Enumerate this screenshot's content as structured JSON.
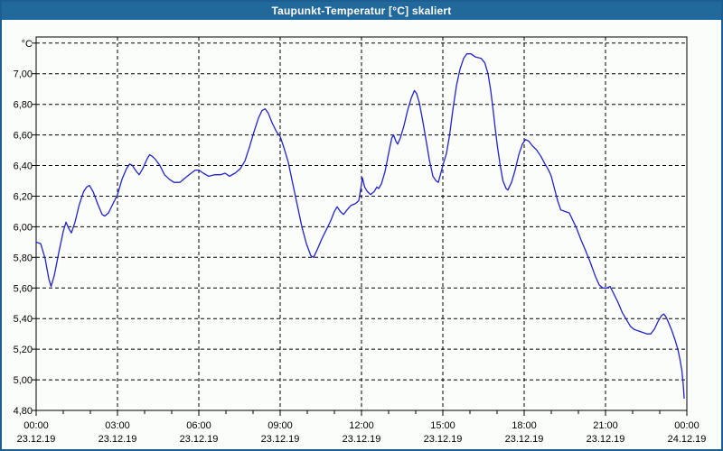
{
  "window": {
    "title": "Taupunkt-Temperatur [°C] skaliert",
    "title_bar_color": "#21689B",
    "border_color": "#1D5E92",
    "background_color": "#FBFDFA"
  },
  "chart_data": {
    "type": "line",
    "title": "Taupunkt-Temperatur [°C] skaliert",
    "unit_label": "°C",
    "line_color": "#2222CC",
    "grid_color": "#000000",
    "ylim": [
      4.8,
      7.24
    ],
    "xlim_minutes": [
      0,
      1440
    ],
    "x_minor_step_minutes": 60,
    "grid": "dashed",
    "legend_position": "none",
    "y_ticks": [
      {
        "value": 7.0,
        "label": "7,00"
      },
      {
        "value": 6.8,
        "label": "6,80"
      },
      {
        "value": 6.6,
        "label": "6,60"
      },
      {
        "value": 6.4,
        "label": "6,40"
      },
      {
        "value": 6.2,
        "label": "6,20"
      },
      {
        "value": 6.0,
        "label": "6,00"
      },
      {
        "value": 5.8,
        "label": "5,80"
      },
      {
        "value": 5.6,
        "label": "5,60"
      },
      {
        "value": 5.4,
        "label": "5,40"
      },
      {
        "value": 5.2,
        "label": "5,20"
      },
      {
        "value": 5.0,
        "label": "5,00"
      },
      {
        "value": 4.8,
        "label": "4,80"
      }
    ],
    "y_grid_values": [
      5.0,
      5.2,
      5.4,
      5.6,
      5.8,
      6.0,
      6.2,
      6.4,
      6.6,
      6.8,
      7.0,
      7.2
    ],
    "x_major_ticks": [
      {
        "minutes": 0,
        "time": "00:00",
        "date": "23.12.19"
      },
      {
        "minutes": 180,
        "time": "03:00",
        "date": "23.12.19"
      },
      {
        "minutes": 360,
        "time": "06:00",
        "date": "23.12.19"
      },
      {
        "minutes": 540,
        "time": "09:00",
        "date": "23.12.19"
      },
      {
        "minutes": 720,
        "time": "12:00",
        "date": "23.12.19"
      },
      {
        "minutes": 900,
        "time": "15:00",
        "date": "23.12.19"
      },
      {
        "minutes": 1080,
        "time": "18:00",
        "date": "23.12.19"
      },
      {
        "minutes": 1260,
        "time": "21:00",
        "date": "23.12.19"
      },
      {
        "minutes": 1440,
        "time": "00:00",
        "date": "24.12.19"
      }
    ],
    "points": [
      [
        0,
        5.9
      ],
      [
        10,
        5.89
      ],
      [
        20,
        5.79
      ],
      [
        28,
        5.66
      ],
      [
        33,
        5.61
      ],
      [
        40,
        5.68
      ],
      [
        50,
        5.83
      ],
      [
        60,
        5.97
      ],
      [
        66,
        6.03
      ],
      [
        72,
        5.99
      ],
      [
        78,
        5.96
      ],
      [
        86,
        6.03
      ],
      [
        95,
        6.14
      ],
      [
        105,
        6.23
      ],
      [
        112,
        6.26
      ],
      [
        118,
        6.27
      ],
      [
        126,
        6.23
      ],
      [
        136,
        6.15
      ],
      [
        146,
        6.08
      ],
      [
        152,
        6.07
      ],
      [
        160,
        6.09
      ],
      [
        170,
        6.15
      ],
      [
        180,
        6.21
      ],
      [
        190,
        6.31
      ],
      [
        200,
        6.38
      ],
      [
        207,
        6.41
      ],
      [
        213,
        6.4
      ],
      [
        222,
        6.36
      ],
      [
        228,
        6.34
      ],
      [
        236,
        6.38
      ],
      [
        245,
        6.44
      ],
      [
        251,
        6.47
      ],
      [
        257,
        6.46
      ],
      [
        264,
        6.44
      ],
      [
        274,
        6.4
      ],
      [
        284,
        6.34
      ],
      [
        295,
        6.31
      ],
      [
        305,
        6.29
      ],
      [
        318,
        6.29
      ],
      [
        330,
        6.32
      ],
      [
        343,
        6.35
      ],
      [
        352,
        6.37
      ],
      [
        360,
        6.37
      ],
      [
        370,
        6.35
      ],
      [
        382,
        6.33
      ],
      [
        395,
        6.34
      ],
      [
        408,
        6.34
      ],
      [
        418,
        6.35
      ],
      [
        428,
        6.33
      ],
      [
        440,
        6.35
      ],
      [
        452,
        6.38
      ],
      [
        462,
        6.43
      ],
      [
        472,
        6.52
      ],
      [
        482,
        6.62
      ],
      [
        492,
        6.71
      ],
      [
        500,
        6.76
      ],
      [
        507,
        6.77
      ],
      [
        514,
        6.74
      ],
      [
        522,
        6.68
      ],
      [
        532,
        6.62
      ],
      [
        540,
        6.59
      ],
      [
        548,
        6.52
      ],
      [
        558,
        6.42
      ],
      [
        568,
        6.28
      ],
      [
        578,
        6.14
      ],
      [
        588,
        6.0
      ],
      [
        598,
        5.89
      ],
      [
        608,
        5.81
      ],
      [
        614,
        5.8
      ],
      [
        622,
        5.85
      ],
      [
        632,
        5.92
      ],
      [
        642,
        5.98
      ],
      [
        652,
        6.04
      ],
      [
        660,
        6.1
      ],
      [
        666,
        6.13
      ],
      [
        673,
        6.1
      ],
      [
        680,
        6.08
      ],
      [
        688,
        6.11
      ],
      [
        697,
        6.14
      ],
      [
        706,
        6.15
      ],
      [
        714,
        6.17
      ],
      [
        719,
        6.26
      ],
      [
        722,
        6.32
      ],
      [
        727,
        6.26
      ],
      [
        733,
        6.23
      ],
      [
        740,
        6.21
      ],
      [
        748,
        6.23
      ],
      [
        754,
        6.26
      ],
      [
        758,
        6.25
      ],
      [
        764,
        6.28
      ],
      [
        772,
        6.36
      ],
      [
        780,
        6.48
      ],
      [
        787,
        6.58
      ],
      [
        791,
        6.6
      ],
      [
        796,
        6.56
      ],
      [
        800,
        6.54
      ],
      [
        806,
        6.58
      ],
      [
        814,
        6.66
      ],
      [
        822,
        6.76
      ],
      [
        830,
        6.84
      ],
      [
        837,
        6.89
      ],
      [
        842,
        6.87
      ],
      [
        848,
        6.81
      ],
      [
        855,
        6.7
      ],
      [
        862,
        6.58
      ],
      [
        870,
        6.44
      ],
      [
        878,
        6.33
      ],
      [
        885,
        6.3
      ],
      [
        890,
        6.29
      ],
      [
        900,
        6.4
      ],
      [
        908,
        6.48
      ],
      [
        915,
        6.6
      ],
      [
        922,
        6.76
      ],
      [
        930,
        6.92
      ],
      [
        938,
        7.03
      ],
      [
        946,
        7.1
      ],
      [
        953,
        7.13
      ],
      [
        962,
        7.13
      ],
      [
        972,
        7.11
      ],
      [
        985,
        7.1
      ],
      [
        993,
        7.07
      ],
      [
        1000,
        7.0
      ],
      [
        1006,
        6.89
      ],
      [
        1011,
        6.77
      ],
      [
        1016,
        6.64
      ],
      [
        1021,
        6.52
      ],
      [
        1027,
        6.4
      ],
      [
        1033,
        6.3
      ],
      [
        1040,
        6.25
      ],
      [
        1044,
        6.24
      ],
      [
        1052,
        6.29
      ],
      [
        1060,
        6.37
      ],
      [
        1068,
        6.47
      ],
      [
        1076,
        6.54
      ],
      [
        1083,
        6.57
      ],
      [
        1090,
        6.56
      ],
      [
        1098,
        6.53
      ],
      [
        1108,
        6.5
      ],
      [
        1117,
        6.46
      ],
      [
        1126,
        6.41
      ],
      [
        1134,
        6.37
      ],
      [
        1140,
        6.33
      ],
      [
        1147,
        6.25
      ],
      [
        1154,
        6.17
      ],
      [
        1161,
        6.11
      ],
      [
        1170,
        6.1
      ],
      [
        1180,
        6.09
      ],
      [
        1188,
        6.04
      ],
      [
        1196,
        5.99
      ],
      [
        1205,
        5.92
      ],
      [
        1215,
        5.85
      ],
      [
        1226,
        5.77
      ],
      [
        1237,
        5.68
      ],
      [
        1246,
        5.62
      ],
      [
        1254,
        5.6
      ],
      [
        1263,
        5.6
      ],
      [
        1270,
        5.61
      ],
      [
        1277,
        5.57
      ],
      [
        1287,
        5.51
      ],
      [
        1297,
        5.44
      ],
      [
        1307,
        5.39
      ],
      [
        1315,
        5.35
      ],
      [
        1323,
        5.33
      ],
      [
        1332,
        5.32
      ],
      [
        1342,
        5.31
      ],
      [
        1352,
        5.3
      ],
      [
        1360,
        5.3
      ],
      [
        1368,
        5.33
      ],
      [
        1376,
        5.38
      ],
      [
        1384,
        5.42
      ],
      [
        1389,
        5.43
      ],
      [
        1394,
        5.41
      ],
      [
        1400,
        5.37
      ],
      [
        1407,
        5.32
      ],
      [
        1414,
        5.26
      ],
      [
        1420,
        5.2
      ],
      [
        1425,
        5.13
      ],
      [
        1429,
        5.06
      ],
      [
        1432,
        4.97
      ],
      [
        1434,
        4.88
      ]
    ]
  }
}
